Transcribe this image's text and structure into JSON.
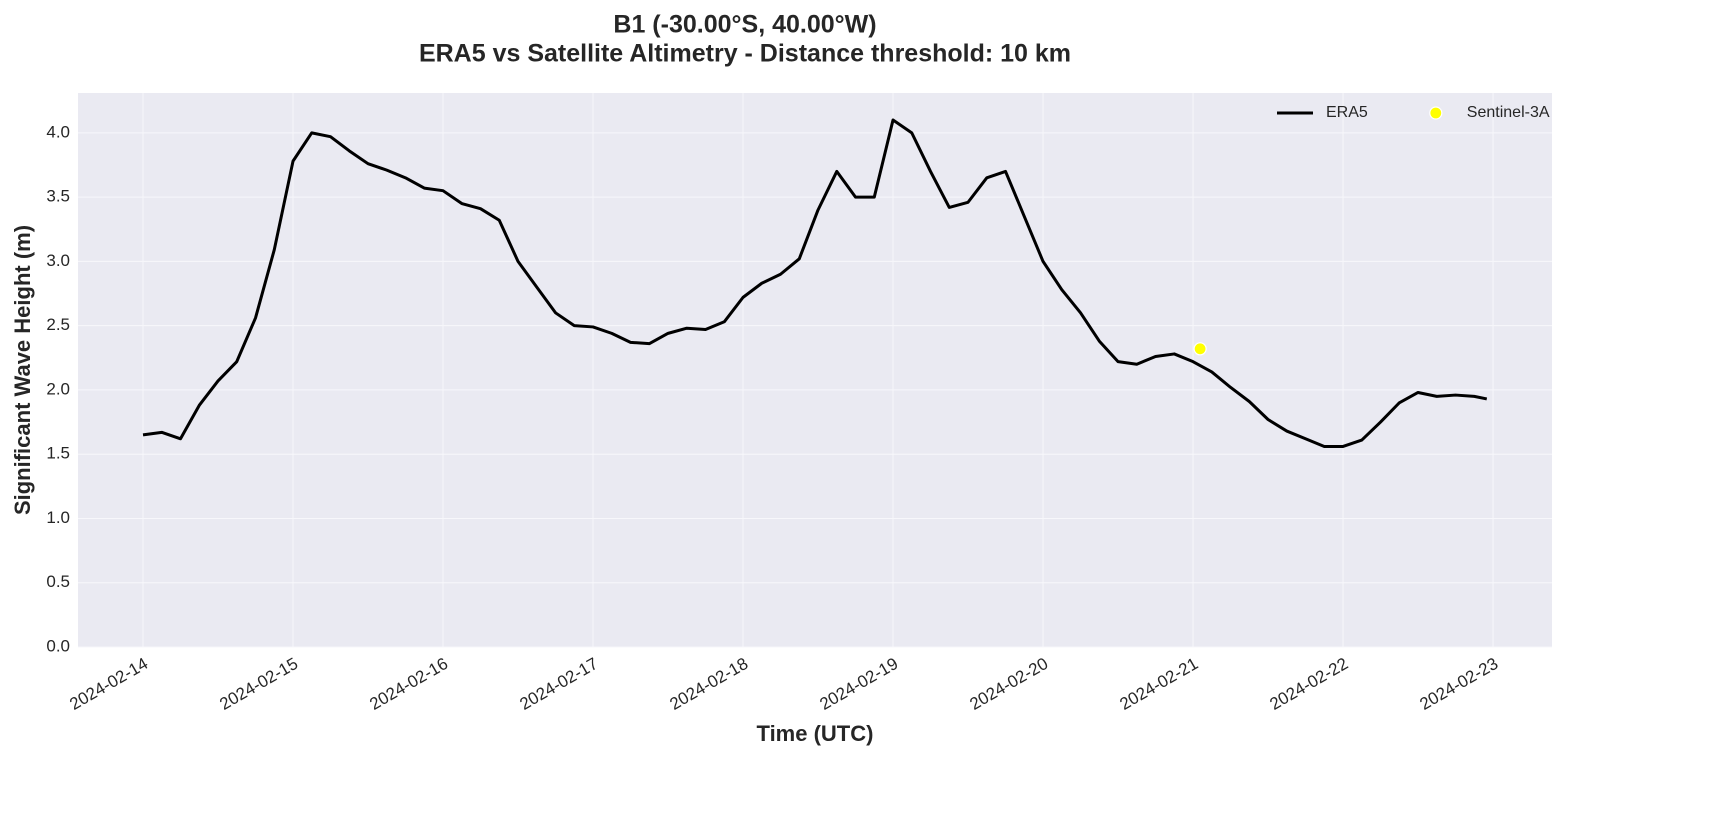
{
  "chart_data": {
    "type": "line",
    "title": "B1 (-30.00°S, 40.00°W)",
    "subtitle": "ERA5 vs Satellite Altimetry - Distance threshold: 10 km",
    "x_label": "Time (UTC)",
    "y_label": "Significant Wave Height (m)",
    "grid": true,
    "legend": "upper right",
    "xlim": [
      "2024-02-13 13:36",
      "2024-02-23 09:26"
    ],
    "ylim": [
      0,
      4.31
    ],
    "xticks": [
      "2024-02-14",
      "2024-02-15",
      "2024-02-16",
      "2024-02-17",
      "2024-02-18",
      "2024-02-19",
      "2024-02-20",
      "2024-02-21",
      "2024-02-22",
      "2024-02-23"
    ],
    "yticks": [
      {
        "value": 0,
        "label": "0.0"
      },
      0.5,
      {
        "value": 1,
        "label": "1.0"
      },
      1.5,
      {
        "value": 2,
        "label": "2.0"
      },
      2.5,
      {
        "value": 3,
        "label": "3.0"
      },
      3.5,
      {
        "value": 4,
        "label": "4.0"
      }
    ],
    "series": [
      {
        "name": "ERA5",
        "type": "line",
        "color": "#000000",
        "x": [
          "2024-02-14 00:00",
          "2024-02-14 03:00",
          "2024-02-14 06:00",
          "2024-02-14 09:00",
          "2024-02-14 12:00",
          "2024-02-14 15:00",
          "2024-02-14 18:00",
          "2024-02-14 21:00",
          "2024-02-15 00:00",
          "2024-02-15 03:00",
          "2024-02-15 06:00",
          "2024-02-15 09:00",
          "2024-02-15 12:00",
          "2024-02-15 15:00",
          "2024-02-15 18:00",
          "2024-02-15 21:00",
          "2024-02-16 00:00",
          "2024-02-16 03:00",
          "2024-02-16 06:00",
          "2024-02-16 09:00",
          "2024-02-16 12:00",
          "2024-02-16 15:00",
          "2024-02-16 18:00",
          "2024-02-16 21:00",
          "2024-02-17 00:00",
          "2024-02-17 03:00",
          "2024-02-17 06:00",
          "2024-02-17 09:00",
          "2024-02-17 12:00",
          "2024-02-17 15:00",
          "2024-02-17 18:00",
          "2024-02-17 21:00",
          "2024-02-18 00:00",
          "2024-02-18 03:00",
          "2024-02-18 06:00",
          "2024-02-18 09:00",
          "2024-02-18 12:00",
          "2024-02-18 15:00",
          "2024-02-18 18:00",
          "2024-02-18 21:00",
          "2024-02-19 00:00",
          "2024-02-19 03:00",
          "2024-02-19 06:00",
          "2024-02-19 09:00",
          "2024-02-19 12:00",
          "2024-02-19 15:00",
          "2024-02-19 18:00",
          "2024-02-19 21:00",
          "2024-02-20 00:00",
          "2024-02-20 03:00",
          "2024-02-20 06:00",
          "2024-02-20 09:00",
          "2024-02-20 12:00",
          "2024-02-20 15:00",
          "2024-02-20 18:00",
          "2024-02-20 21:00",
          "2024-02-21 00:00",
          "2024-02-21 03:00",
          "2024-02-21 06:00",
          "2024-02-21 09:00",
          "2024-02-21 12:00",
          "2024-02-21 15:00",
          "2024-02-21 18:00",
          "2024-02-21 21:00",
          "2024-02-22 00:00",
          "2024-02-22 03:00",
          "2024-02-22 06:00",
          "2024-02-22 09:00",
          "2024-02-22 12:00",
          "2024-02-22 15:00",
          "2024-02-22 18:00",
          "2024-02-22 21:00",
          "2024-02-22 23:00"
        ],
        "values": [
          1.65,
          1.67,
          1.62,
          1.88,
          2.07,
          2.22,
          2.56,
          3.09,
          3.78,
          4.0,
          3.97,
          3.86,
          3.76,
          3.71,
          3.65,
          3.57,
          3.55,
          3.45,
          3.41,
          3.32,
          3.0,
          2.8,
          2.6,
          2.5,
          2.49,
          2.44,
          2.37,
          2.36,
          2.44,
          2.48,
          2.47,
          2.53,
          2.72,
          2.83,
          2.9,
          3.02,
          3.4,
          3.7,
          3.5,
          3.5,
          4.1,
          4.0,
          3.7,
          3.42,
          3.46,
          3.65,
          3.7,
          3.35,
          3.0,
          2.78,
          2.6,
          2.38,
          2.22,
          2.2,
          2.26,
          2.28,
          2.22,
          2.14,
          2.02,
          1.91,
          1.77,
          1.68,
          1.62,
          1.56,
          1.56,
          1.61,
          1.75,
          1.9,
          1.98,
          1.95,
          1.96,
          1.95,
          1.93
        ]
      },
      {
        "name": "Sentinel-3A",
        "type": "scatter",
        "color": "#ffff00",
        "x": [
          "2024-02-21 01:08"
        ],
        "values": [
          2.32
        ]
      }
    ]
  }
}
